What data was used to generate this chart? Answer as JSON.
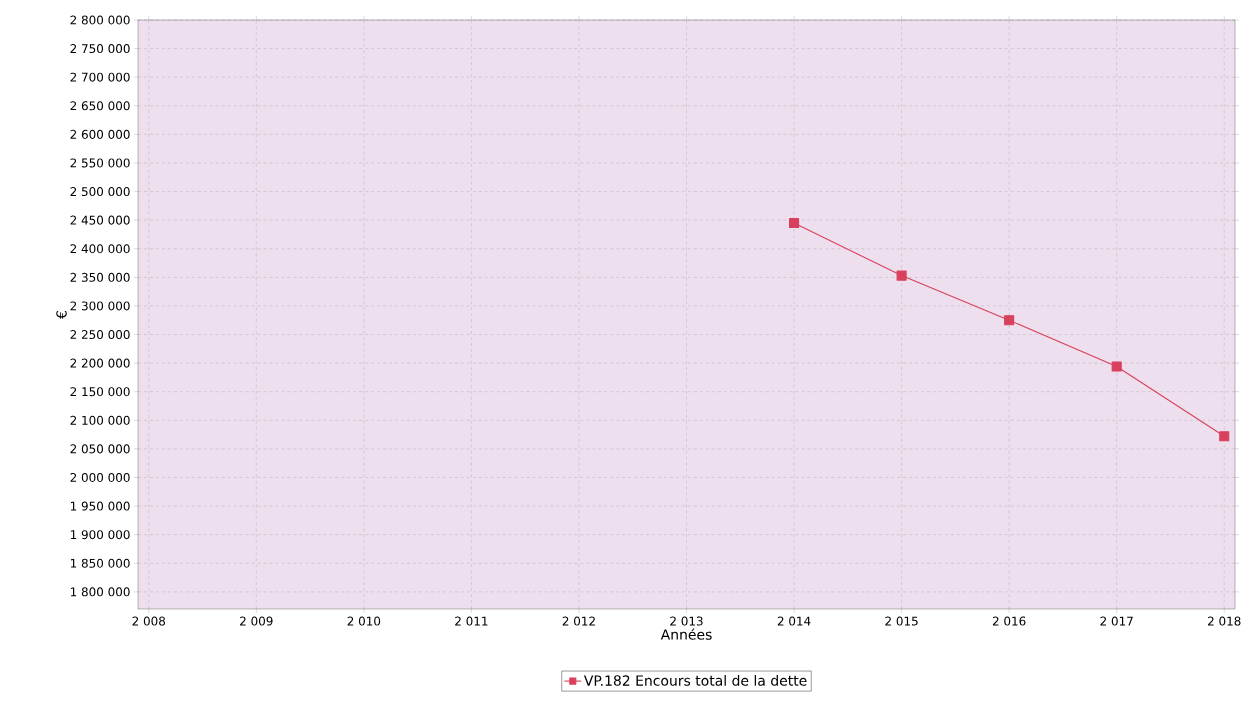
{
  "chart_data": {
    "type": "line",
    "xlabel": "Années",
    "ylabel": "€",
    "x": [
      2014,
      2015,
      2016,
      2017,
      2018
    ],
    "series": [
      {
        "name": "VP.182 Encours total de la dette",
        "color": "#d8405c",
        "values": [
          2445000,
          2353000,
          2275000,
          2194000,
          2072000
        ]
      }
    ],
    "xlim": [
      2007.9,
      2018.1
    ],
    "ylim": [
      1770000,
      2800000
    ],
    "xticks": [
      {
        "value": 2008,
        "label": "2 008"
      },
      {
        "value": 2009,
        "label": "2 009"
      },
      {
        "value": 2010,
        "label": "2 010"
      },
      {
        "value": 2011,
        "label": "2 011"
      },
      {
        "value": 2012,
        "label": "2 012"
      },
      {
        "value": 2013,
        "label": "2 013"
      },
      {
        "value": 2014,
        "label": "2 014"
      },
      {
        "value": 2015,
        "label": "2 015"
      },
      {
        "value": 2016,
        "label": "2 016"
      },
      {
        "value": 2017,
        "label": "2 017"
      },
      {
        "value": 2018,
        "label": "2 018"
      }
    ],
    "yticks": [
      {
        "value": 1800000,
        "label": "1 800 000"
      },
      {
        "value": 1850000,
        "label": "1 850 000"
      },
      {
        "value": 1900000,
        "label": "1 900 000"
      },
      {
        "value": 1950000,
        "label": "1 950 000"
      },
      {
        "value": 2000000,
        "label": "2 000 000"
      },
      {
        "value": 2050000,
        "label": "2 050 000"
      },
      {
        "value": 2100000,
        "label": "2 100 000"
      },
      {
        "value": 2150000,
        "label": "2 150 000"
      },
      {
        "value": 2200000,
        "label": "2 200 000"
      },
      {
        "value": 2250000,
        "label": "2 250 000"
      },
      {
        "value": 2300000,
        "label": "2 300 000"
      },
      {
        "value": 2350000,
        "label": "2 350 000"
      },
      {
        "value": 2400000,
        "label": "2 400 000"
      },
      {
        "value": 2450000,
        "label": "2 450 000"
      },
      {
        "value": 2500000,
        "label": "2 500 000"
      },
      {
        "value": 2550000,
        "label": "2 550 000"
      },
      {
        "value": 2600000,
        "label": "2 600 000"
      },
      {
        "value": 2650000,
        "label": "2 650 000"
      },
      {
        "value": 2700000,
        "label": "2 700 000"
      },
      {
        "value": 2750000,
        "label": "2 750 000"
      },
      {
        "value": 2800000,
        "label": "2 800 000"
      }
    ],
    "grid": true,
    "legend": "bottom",
    "marker": "square",
    "line_style": "solid"
  }
}
